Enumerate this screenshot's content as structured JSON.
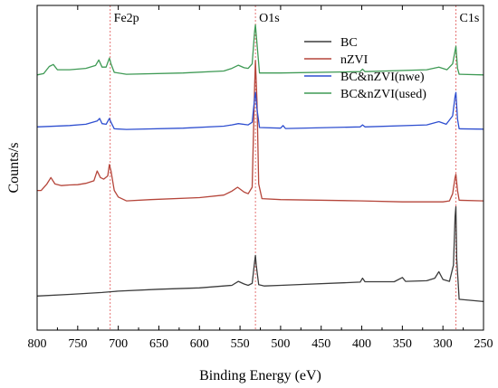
{
  "chart_data": {
    "type": "line",
    "title": "",
    "xlabel": "Binding Energy (eV)",
    "ylabel": "Counts/s",
    "xlim": [
      800,
      250
    ],
    "x_reversed": true,
    "xticks": [
      800,
      750,
      700,
      650,
      600,
      550,
      500,
      450,
      400,
      350,
      300,
      250
    ],
    "y_ticks_shown": false,
    "y_scale": "arbitrary units, stacked offset",
    "ylim": [
      0,
      100
    ],
    "grid": false,
    "legend_position": "top-right",
    "reference_lines": [
      {
        "label": "Fe2p",
        "x": 710,
        "color": "#e57373"
      },
      {
        "label": "O1s",
        "x": 531,
        "color": "#e57373"
      },
      {
        "label": "C1s",
        "x": 284,
        "color": "#e57373"
      }
    ],
    "series": [
      {
        "name": "BC",
        "color": "#3c3c3c",
        "points": [
          [
            800,
            10.5
          ],
          [
            760,
            11
          ],
          [
            720,
            11.6
          ],
          [
            700,
            12
          ],
          [
            650,
            12.6
          ],
          [
            600,
            13
          ],
          [
            560,
            13.8
          ],
          [
            552,
            15
          ],
          [
            545,
            14.2
          ],
          [
            540,
            13.8
          ],
          [
            535,
            14.4
          ],
          [
            532,
            21
          ],
          [
            531,
            23
          ],
          [
            530,
            20
          ],
          [
            527,
            14
          ],
          [
            520,
            13.6
          ],
          [
            500,
            13.8
          ],
          [
            490,
            13.9
          ],
          [
            470,
            14.1
          ],
          [
            402,
            14.8
          ],
          [
            399,
            16
          ],
          [
            396,
            14.9
          ],
          [
            360,
            14.9
          ],
          [
            350,
            16.2
          ],
          [
            346,
            15
          ],
          [
            320,
            15.2
          ],
          [
            310,
            16
          ],
          [
            305,
            18
          ],
          [
            300,
            15.6
          ],
          [
            292,
            15
          ],
          [
            287,
            20
          ],
          [
            285,
            35
          ],
          [
            284,
            38
          ],
          [
            283,
            22
          ],
          [
            280,
            9.5
          ],
          [
            250,
            8.8
          ]
        ]
      },
      {
        "name": "nZVI",
        "color": "#b5453a",
        "points": [
          [
            800,
            43
          ],
          [
            795,
            43
          ],
          [
            788,
            45
          ],
          [
            783,
            47
          ],
          [
            778,
            45
          ],
          [
            770,
            44.5
          ],
          [
            760,
            44.7
          ],
          [
            750,
            44.8
          ],
          [
            740,
            45.2
          ],
          [
            730,
            46
          ],
          [
            726,
            49
          ],
          [
            722,
            47
          ],
          [
            718,
            46.5
          ],
          [
            713,
            47.5
          ],
          [
            711,
            51
          ],
          [
            709,
            49
          ],
          [
            705,
            43
          ],
          [
            700,
            41
          ],
          [
            690,
            39.8
          ],
          [
            660,
            40.2
          ],
          [
            600,
            40.8
          ],
          [
            570,
            41.6
          ],
          [
            560,
            42.8
          ],
          [
            553,
            44
          ],
          [
            545,
            42.5
          ],
          [
            540,
            42
          ],
          [
            535,
            44
          ],
          [
            532,
            75
          ],
          [
            531,
            83
          ],
          [
            529,
            70
          ],
          [
            527,
            45
          ],
          [
            523,
            40.5
          ],
          [
            500,
            40.2
          ],
          [
            400,
            39.8
          ],
          [
            350,
            39.5
          ],
          [
            300,
            39.5
          ],
          [
            292,
            39.8
          ],
          [
            288,
            42
          ],
          [
            285,
            47
          ],
          [
            284,
            48
          ],
          [
            282,
            43
          ],
          [
            280,
            40
          ],
          [
            250,
            39.8
          ]
        ]
      },
      {
        "name": "BC&nZVI(nwe)",
        "color": "#2f4fd0",
        "points": [
          [
            800,
            62.6
          ],
          [
            760,
            63
          ],
          [
            740,
            63.4
          ],
          [
            726,
            64.4
          ],
          [
            723,
            65.2
          ],
          [
            720,
            63.6
          ],
          [
            715,
            63.4
          ],
          [
            711,
            65.2
          ],
          [
            709,
            64
          ],
          [
            705,
            62
          ],
          [
            690,
            61.8
          ],
          [
            620,
            62.2
          ],
          [
            570,
            62.8
          ],
          [
            560,
            63.2
          ],
          [
            552,
            63.6
          ],
          [
            540,
            63.2
          ],
          [
            535,
            64
          ],
          [
            532,
            71.4
          ],
          [
            531,
            73.2
          ],
          [
            529,
            68
          ],
          [
            526,
            62.4
          ],
          [
            500,
            62.2
          ],
          [
            497,
            63
          ],
          [
            494,
            62.1
          ],
          [
            402,
            62.6
          ],
          [
            399,
            63.2
          ],
          [
            396,
            62.6
          ],
          [
            320,
            63.2
          ],
          [
            305,
            64.2
          ],
          [
            296,
            63.4
          ],
          [
            288,
            66
          ],
          [
            285,
            72
          ],
          [
            284,
            73.2
          ],
          [
            282,
            65
          ],
          [
            280,
            62
          ],
          [
            250,
            61.9
          ]
        ]
      },
      {
        "name": "BC&nZVI(used)",
        "color": "#3f9a55",
        "points": [
          [
            800,
            78.6
          ],
          [
            792,
            79
          ],
          [
            785,
            81.2
          ],
          [
            780,
            81.8
          ],
          [
            775,
            80.2
          ],
          [
            760,
            80.2
          ],
          [
            740,
            80.6
          ],
          [
            728,
            81.5
          ],
          [
            724,
            83.2
          ],
          [
            720,
            81
          ],
          [
            715,
            81
          ],
          [
            711,
            83.8
          ],
          [
            709,
            82
          ],
          [
            705,
            79.4
          ],
          [
            690,
            78.8
          ],
          [
            620,
            79.2
          ],
          [
            570,
            79.8
          ],
          [
            560,
            80.6
          ],
          [
            552,
            81.6
          ],
          [
            545,
            80.8
          ],
          [
            540,
            80.6
          ],
          [
            535,
            82
          ],
          [
            532,
            92
          ],
          [
            531,
            94
          ],
          [
            529,
            88
          ],
          [
            526,
            79.2
          ],
          [
            500,
            79.2
          ],
          [
            402,
            79.6
          ],
          [
            399,
            80.4
          ],
          [
            396,
            79.6
          ],
          [
            320,
            80.2
          ],
          [
            305,
            81
          ],
          [
            295,
            80.2
          ],
          [
            288,
            82
          ],
          [
            285,
            86
          ],
          [
            284,
            87.4
          ],
          [
            282,
            80.6
          ],
          [
            280,
            78.8
          ],
          [
            250,
            78.6
          ]
        ]
      }
    ]
  }
}
